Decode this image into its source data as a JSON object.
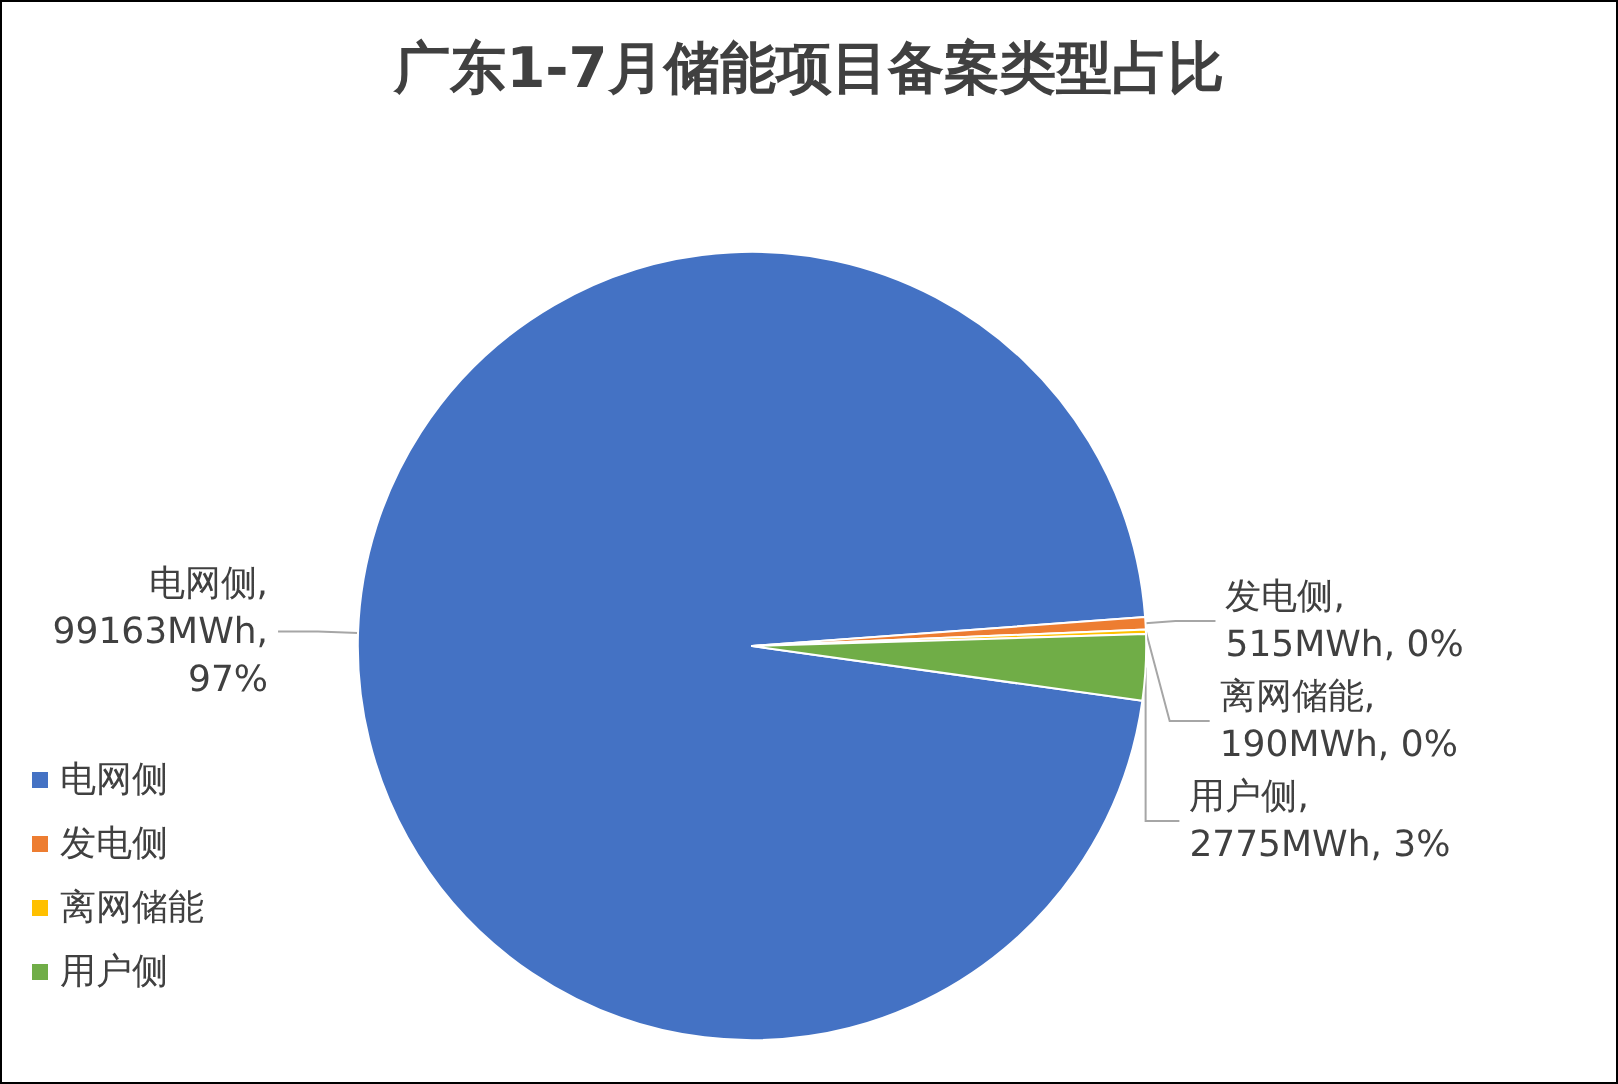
{
  "chart_data": {
    "type": "pie",
    "title": "广东1-7月储能项目备案类型占比",
    "categories": [
      "电网侧",
      "发电侧",
      "离网储能",
      "用户侧"
    ],
    "values": [
      99163,
      515,
      190,
      2775
    ],
    "colors": [
      "#4472c4",
      "#ed7d31",
      "#ffc000",
      "#70ad47"
    ],
    "value_labels": [
      "电网侧,\n99163MWh,\n97%",
      "发电侧,\n515MWh, 0%",
      "离网储能,\n190MWh, 0%",
      "用户侧,\n2775MWh, 3%"
    ],
    "legend": "left"
  }
}
